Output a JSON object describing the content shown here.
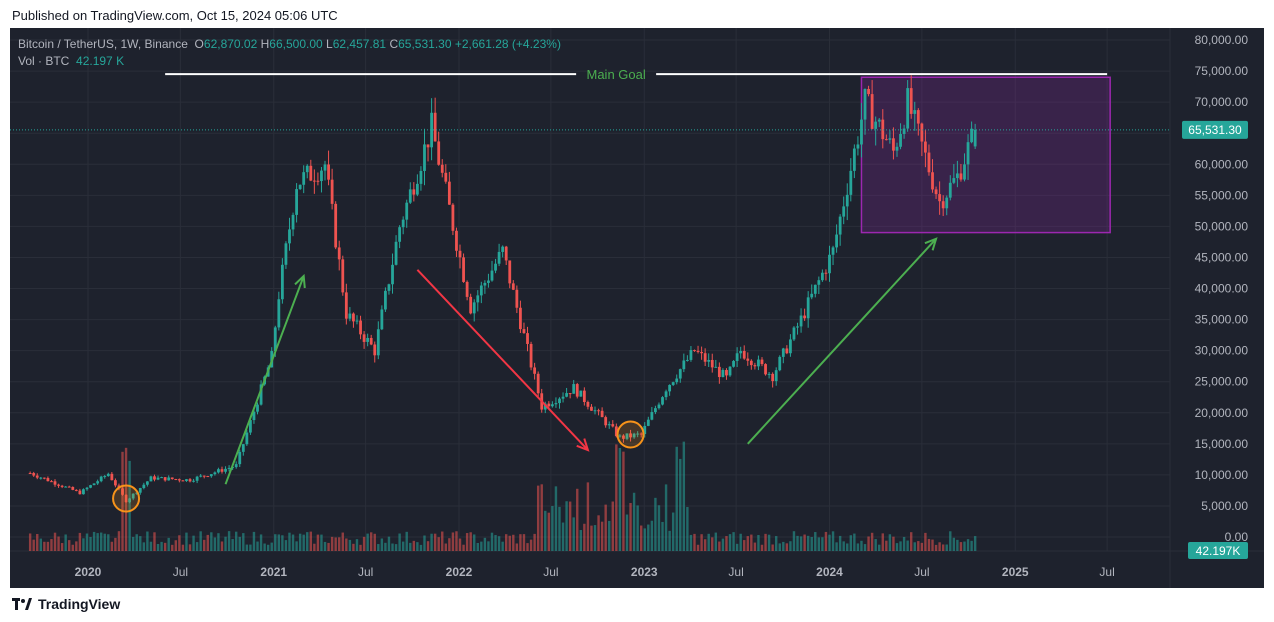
{
  "published": "Published on TradingView.com, Oct 15, 2024 05:06 UTC",
  "legend": {
    "symbol": "Bitcoin / TetherUS, 1W, Binance",
    "o_label": "O",
    "o": "62,870.02",
    "h_label": "H",
    "h": "66,500.00",
    "l_label": "L",
    "l": "62,457.81",
    "c_label": "C",
    "c": "65,531.30",
    "change": "+2,661.28 (+4.23%)",
    "vol_label": "Vol · BTC",
    "vol": "42.197 K"
  },
  "brand": "TradingView",
  "colors": {
    "background": "#1e222d",
    "up": "#26a69a",
    "down": "#ef5350",
    "grid": "#2a2e39",
    "text": "#b2b5be",
    "box": "#9c27b0",
    "goal_line": "#ffffff",
    "goal_text": "#4caf50",
    "arrow_up": "#4caf50",
    "arrow_down": "#f23645",
    "circle": "#f7931a"
  },
  "chart_data": {
    "type": "candlestick",
    "title": "Bitcoin / TetherUS, 1W, Binance",
    "y_ticks": [
      "80,000.00",
      "75,000.00",
      "70,000.00",
      "65,000.00",
      "60,000.00",
      "55,000.00",
      "50,000.00",
      "45,000.00",
      "40,000.00",
      "35,000.00",
      "30,000.00",
      "25,000.00",
      "20,000.00",
      "15,000.00",
      "10,000.00",
      "5,000.00",
      "0.00"
    ],
    "ylim": [
      0,
      80000
    ],
    "x_ticks": [
      "2020",
      "Jul",
      "2021",
      "Jul",
      "2022",
      "Jul",
      "2023",
      "Jul",
      "2024",
      "Jul",
      "2025",
      "Jul"
    ],
    "last_price_label": "65,531.30",
    "last_volume_label": "42.197K",
    "price_path": [
      [
        "2019-09-09",
        10300
      ],
      [
        "2019-12-16",
        7100
      ],
      [
        "2020-02-10",
        10200
      ],
      [
        "2020-03-16",
        5800
      ],
      [
        "2020-05-04",
        9500
      ],
      [
        "2020-07-20",
        9200
      ],
      [
        "2020-10-19",
        11500
      ],
      [
        "2020-12-28",
        29000
      ],
      [
        "2021-01-11",
        39000
      ],
      [
        "2021-02-15",
        57000
      ],
      [
        "2021-04-12",
        60000
      ],
      [
        "2021-05-24",
        36000
      ],
      [
        "2021-07-19",
        30000
      ],
      [
        "2021-09-06",
        50000
      ],
      [
        "2021-11-08",
        66000
      ],
      [
        "2022-01-24",
        37000
      ],
      [
        "2022-03-28",
        46000
      ],
      [
        "2022-06-13",
        21000
      ],
      [
        "2022-08-15",
        24000
      ],
      [
        "2022-11-14",
        16000
      ],
      [
        "2022-12-26",
        16500
      ],
      [
        "2023-02-13",
        24000
      ],
      [
        "2023-04-10",
        30000
      ],
      [
        "2023-06-12",
        25500
      ],
      [
        "2023-07-10",
        30000
      ],
      [
        "2023-09-11",
        26000
      ],
      [
        "2023-11-06",
        35000
      ],
      [
        "2024-01-08",
        46000
      ],
      [
        "2024-03-11",
        70000
      ],
      [
        "2024-05-06",
        62000
      ],
      [
        "2024-06-03",
        70000
      ],
      [
        "2024-08-05",
        54000
      ],
      [
        "2024-09-09",
        58000
      ],
      [
        "2024-10-14",
        65531
      ]
    ],
    "annotations": {
      "main_goal": {
        "label": "Main Goal",
        "price": 74500,
        "from": "2020-06-01",
        "to": "2025-07-01"
      },
      "range_box": {
        "from": "2024-03-04",
        "to": "2025-07-07",
        "top": 74000,
        "bottom": 49000
      },
      "arrows_up": [
        {
          "from": [
            "2020-09-28",
            8500
          ],
          "to": [
            "2021-03-01",
            42000
          ]
        },
        {
          "from": [
            "2023-07-24",
            15000
          ],
          "to": [
            "2024-07-29",
            48000
          ]
        }
      ],
      "arrows_down": [
        {
          "from": [
            "2021-10-11",
            43000
          ],
          "to": [
            "2022-09-12",
            14000
          ]
        }
      ],
      "circles": [
        {
          "date": "2020-03-16",
          "price": 6200
        },
        {
          "date": "2022-12-05",
          "price": 16500
        }
      ]
    }
  }
}
